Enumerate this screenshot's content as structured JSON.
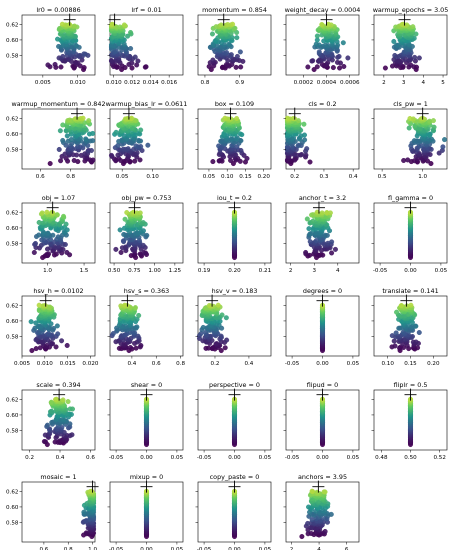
{
  "chart_data": [
    {
      "title": "lr0 = 0.00886",
      "type": "scatter",
      "xlim": [
        0.002,
        0.0125
      ],
      "xticks": [
        "0.005",
        "0.010"
      ],
      "xtv": [
        0.005,
        0.01
      ],
      "best": 0.00886,
      "dist": "spread",
      "spread": 0.0018
    },
    {
      "title": "lrf = 0.01",
      "type": "scatter",
      "xlim": [
        0.0096,
        0.0175
      ],
      "xticks": [
        "0.010",
        "0.012",
        "0.014",
        "0.016"
      ],
      "xtv": [
        0.01,
        0.012,
        0.014,
        0.016
      ],
      "best": 0.0101,
      "dist": "left",
      "spread": 0.0022
    },
    {
      "title": "momentum = 0.854",
      "type": "scatter",
      "xlim": [
        0.78,
        0.99
      ],
      "xticks": [
        "0.8",
        "0.9"
      ],
      "xtv": [
        0.8,
        0.9
      ],
      "best": 0.854,
      "dist": "spread",
      "spread": 0.04
    },
    {
      "title": "weight_decay = 0.0004",
      "type": "scatter",
      "xlim": [
        5e-05,
        0.00068
      ],
      "xticks": [
        "0.0002",
        "0.0004",
        "0.0006"
      ],
      "xtv": [
        0.0002,
        0.0004,
        0.0006
      ],
      "best": 0.0004,
      "dist": "spread",
      "spread": 0.00012
    },
    {
      "title": "warmup_epochs = 3.05",
      "type": "scatter",
      "xlim": [
        1.5,
        5.2
      ],
      "xticks": [
        "2",
        "3",
        "4",
        "5"
      ],
      "xtv": [
        2,
        3,
        4,
        5
      ],
      "best": 3.05,
      "dist": "spread",
      "spread": 0.6
    },
    {
      "title": "warmup_momentum = 0.842",
      "type": "scatter",
      "xlim": [
        0.48,
        0.96
      ],
      "xticks": [
        "0.6",
        "0.8"
      ],
      "xtv": [
        0.6,
        0.8
      ],
      "best": 0.842,
      "dist": "spread",
      "spread": 0.1
    },
    {
      "title": "warmup_bias_lr = 0.0611",
      "type": "scatter",
      "xlim": [
        0.03,
        0.15
      ],
      "xticks": [
        "0.05",
        "0.10"
      ],
      "xtv": [
        0.05,
        0.1
      ],
      "best": 0.0611,
      "dist": "spread",
      "spread": 0.025
    },
    {
      "title": "box = 0.109",
      "type": "scatter",
      "xlim": [
        0.02,
        0.22
      ],
      "xticks": [
        "0.05",
        "0.10",
        "0.15",
        "0.20"
      ],
      "xtv": [
        0.05,
        0.1,
        0.15,
        0.2
      ],
      "best": 0.109,
      "dist": "spread",
      "spread": 0.035
    },
    {
      "title": "cls = 0.2",
      "type": "scatter",
      "xlim": [
        0.17,
        0.42
      ],
      "xticks": [
        "0.2",
        "0.3",
        "0.4"
      ],
      "xtv": [
        0.2,
        0.3,
        0.4
      ],
      "best": 0.2,
      "dist": "left",
      "spread": 0.06
    },
    {
      "title": "cls_pw = 1",
      "type": "scatter",
      "xlim": [
        0.4,
        1.3
      ],
      "xticks": [
        "0.5",
        "1.0"
      ],
      "xtv": [
        0.5,
        1.0
      ],
      "best": 1.0,
      "dist": "spread",
      "spread": 0.18
    },
    {
      "title": "obj = 1.07",
      "type": "scatter",
      "xlim": [
        0.65,
        1.65
      ],
      "xticks": [
        "1.0",
        "1.5"
      ],
      "xtv": [
        1.0,
        1.5
      ],
      "best": 1.07,
      "dist": "spread",
      "spread": 0.2
    },
    {
      "title": "obj_pw = 0.753",
      "type": "scatter",
      "xlim": [
        0.45,
        1.35
      ],
      "xticks": [
        "0.50",
        "0.75",
        "1.00",
        "1.25"
      ],
      "xtv": [
        0.5,
        0.75,
        1.0,
        1.25
      ],
      "best": 0.753,
      "dist": "spread",
      "spread": 0.15
    },
    {
      "title": "iou_t = 0.2",
      "type": "scatter",
      "xlim": [
        0.188,
        0.212
      ],
      "xticks": [
        "0.19",
        "0.20",
        "0.21"
      ],
      "xtv": [
        0.19,
        0.2,
        0.21
      ],
      "best": 0.2,
      "dist": "const"
    },
    {
      "title": "anchor_t = 3.2",
      "type": "scatter",
      "xlim": [
        1.8,
        4.9
      ],
      "xticks": [
        "2",
        "3",
        "4"
      ],
      "xtv": [
        2,
        3,
        4
      ],
      "best": 3.2,
      "dist": "spread",
      "spread": 0.5
    },
    {
      "title": "fl_gamma = 0",
      "type": "scatter",
      "xlim": [
        -0.06,
        0.06
      ],
      "xticks": [
        "-0.05",
        "0.00",
        "0.05"
      ],
      "xtv": [
        -0.05,
        0,
        0.05
      ],
      "best": 0,
      "dist": "const"
    },
    {
      "title": "hsv_h = 0.0102",
      "type": "scatter",
      "xlim": [
        0.005,
        0.021
      ],
      "xticks": [
        "0.005",
        "0.010",
        "0.015",
        "0.020"
      ],
      "xtv": [
        0.005,
        0.01,
        0.015,
        0.02
      ],
      "best": 0.0102,
      "dist": "spread",
      "spread": 0.0025
    },
    {
      "title": "hsv_s = 0.363",
      "type": "scatter",
      "xlim": [
        0.22,
        0.82
      ],
      "xticks": [
        "0.4",
        "0.6",
        "0.8"
      ],
      "xtv": [
        0.4,
        0.6,
        0.8
      ],
      "best": 0.363,
      "dist": "spread",
      "spread": 0.1
    },
    {
      "title": "hsv_v = 0.183",
      "type": "scatter",
      "xlim": [
        0.1,
        0.53
      ],
      "xticks": [
        "0.2",
        "0.4"
      ],
      "xtv": [
        0.2,
        0.4
      ],
      "best": 0.183,
      "dist": "spread",
      "spread": 0.07
    },
    {
      "title": "degrees = 0",
      "type": "scatter",
      "xlim": [
        -0.06,
        0.06
      ],
      "xticks": [
        "-0.05",
        "0.00",
        "0.05"
      ],
      "xtv": [
        -0.05,
        0,
        0.05
      ],
      "best": 0,
      "dist": "const"
    },
    {
      "title": "translate = 0.141",
      "type": "scatter",
      "xlim": [
        0.07,
        0.23
      ],
      "xticks": [
        "0.10",
        "0.15",
        "0.20"
      ],
      "xtv": [
        0.1,
        0.15,
        0.2
      ],
      "best": 0.141,
      "dist": "spread",
      "spread": 0.025
    },
    {
      "title": "scale = 0.394",
      "type": "scatter",
      "xlim": [
        0.15,
        0.63
      ],
      "xticks": [
        "0.2",
        "0.4",
        "0.6"
      ],
      "xtv": [
        0.2,
        0.4,
        0.6
      ],
      "best": 0.394,
      "dist": "spread",
      "spread": 0.08
    },
    {
      "title": "shear = 0",
      "type": "scatter",
      "xlim": [
        -0.06,
        0.06
      ],
      "xticks": [
        "-0.05",
        "0.00",
        "0.05"
      ],
      "xtv": [
        -0.05,
        0,
        0.05
      ],
      "best": 0,
      "dist": "const"
    },
    {
      "title": "perspective = 0",
      "type": "scatter",
      "xlim": [
        -0.06,
        0.06
      ],
      "xticks": [
        "-0.05",
        "0.00",
        "0.05"
      ],
      "xtv": [
        -0.05,
        0,
        0.05
      ],
      "best": 0,
      "dist": "const"
    },
    {
      "title": "flipud = 0",
      "type": "scatter",
      "xlim": [
        -0.06,
        0.06
      ],
      "xticks": [
        "-0.05",
        "0.00",
        "0.05"
      ],
      "xtv": [
        -0.05,
        0,
        0.05
      ],
      "best": 0,
      "dist": "const"
    },
    {
      "title": "fliplr = 0.5",
      "type": "scatter",
      "xlim": [
        0.475,
        0.525
      ],
      "xticks": [
        "0.48",
        "0.50",
        "0.52"
      ],
      "xtv": [
        0.48,
        0.5,
        0.52
      ],
      "best": 0.5,
      "dist": "const"
    },
    {
      "title": "mosaic = 1",
      "type": "scatter",
      "xlim": [
        0.42,
        1.02
      ],
      "xticks": [
        "0.6",
        "0.8",
        "1.0"
      ],
      "xtv": [
        0.6,
        0.8,
        1.0
      ],
      "best": 1.0,
      "dist": "right",
      "spread": 0.08
    },
    {
      "title": "mixup = 0",
      "type": "scatter",
      "xlim": [
        -0.06,
        0.06
      ],
      "xticks": [
        "-0.05",
        "0.00",
        "0.05"
      ],
      "xtv": [
        -0.05,
        0,
        0.05
      ],
      "best": 0,
      "dist": "const"
    },
    {
      "title": "copy_paste = 0",
      "type": "scatter",
      "xlim": [
        -0.06,
        0.06
      ],
      "xticks": [
        "-0.05",
        "0.00",
        "0.05"
      ],
      "xtv": [
        -0.05,
        0,
        0.05
      ],
      "best": 0,
      "dist": "const"
    },
    {
      "title": "anchors = 3.95",
      "type": "scatter",
      "xlim": [
        1.6,
        6.9
      ],
      "xticks": [
        "2",
        "4",
        "6"
      ],
      "xtv": [
        2,
        4,
        6
      ],
      "best": 3.95,
      "dist": "spread",
      "spread": 0.8
    }
  ],
  "y_axis": {
    "ylim": [
      0.555,
      0.632
    ],
    "yticks": [
      "0.58",
      "0.60",
      "0.62"
    ],
    "ytv": [
      0.58,
      0.6,
      0.62
    ]
  },
  "colors": {
    "low": "#440154",
    "high": "#fde725",
    "marker": "#000000"
  }
}
